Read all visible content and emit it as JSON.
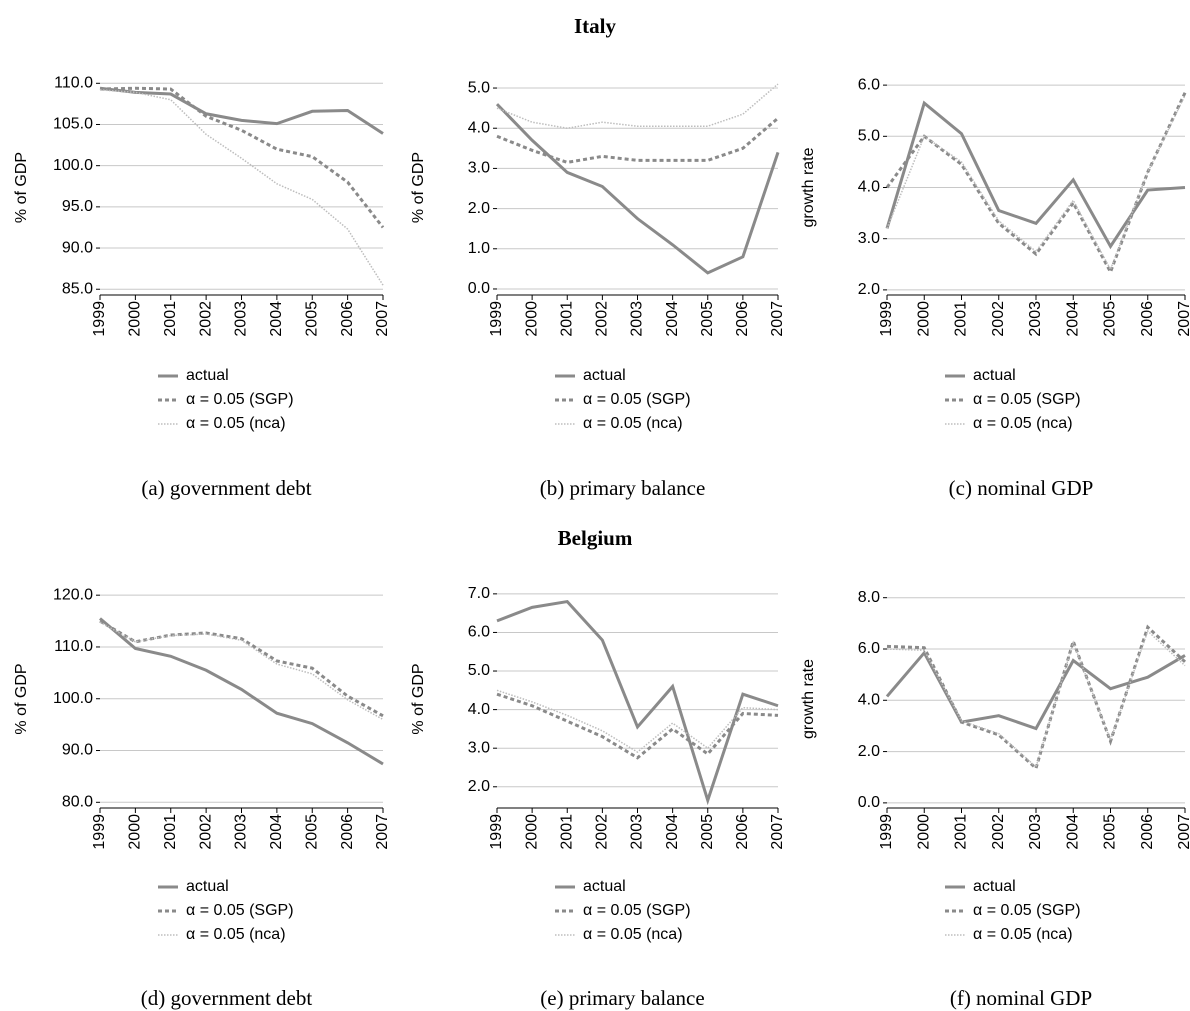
{
  "section_titles": [
    "Italy",
    "Belgium"
  ],
  "chart_data": [
    {
      "type": "line",
      "caption": "(a) government debt",
      "ylabel": "% of GDP",
      "grid": true,
      "legend_position": "below",
      "categories": [
        "1999",
        "2000",
        "2001",
        "2002",
        "2003",
        "2004",
        "2005",
        "2006",
        "2007"
      ],
      "ylim": [
        84.3,
        110.4
      ],
      "yticks": [
        {
          "value": 85,
          "label": "85.0"
        },
        {
          "value": 90,
          "label": "90.0"
        },
        {
          "value": 95,
          "label": "95.0"
        },
        {
          "value": 100,
          "label": "100.0"
        },
        {
          "value": 105,
          "label": "105.0"
        },
        {
          "value": 110,
          "label": "110.0"
        }
      ],
      "series": [
        {
          "name": "actual",
          "color": "#8a8a8a",
          "style": "solid",
          "values": [
            109.4,
            108.9,
            108.7,
            106.3,
            105.5,
            105.1,
            106.6,
            106.7,
            103.9
          ]
        },
        {
          "name": "α = 0.05 (SGP)",
          "color": "#8a8a8a",
          "style": "dashed",
          "values": [
            109.3,
            109.4,
            109.3,
            106.0,
            104.3,
            102.0,
            101.1,
            98.0,
            92.5
          ]
        },
        {
          "name": "α = 0.05 (nca)",
          "color": "#bdbdbd",
          "style": "dotted",
          "values": [
            109.2,
            108.9,
            108.0,
            103.8,
            100.9,
            97.8,
            95.9,
            92.3,
            85.5
          ]
        }
      ]
    },
    {
      "type": "line",
      "caption": "(b) primary balance",
      "ylabel": "% of GDP",
      "grid": true,
      "legend_position": "below",
      "categories": [
        "1999",
        "2000",
        "2001",
        "2002",
        "2003",
        "2004",
        "2005",
        "2006",
        "2007"
      ],
      "ylim": [
        -0.15,
        5.2
      ],
      "yticks": [
        {
          "value": 0,
          "label": "0.0"
        },
        {
          "value": 1,
          "label": "1.0"
        },
        {
          "value": 2,
          "label": "2.0"
        },
        {
          "value": 3,
          "label": "3.0"
        },
        {
          "value": 4,
          "label": "4.0"
        },
        {
          "value": 5,
          "label": "5.0"
        }
      ],
      "series": [
        {
          "name": "actual",
          "color": "#8a8a8a",
          "style": "solid",
          "values": [
            4.6,
            3.7,
            2.9,
            2.55,
            1.75,
            1.1,
            0.4,
            0.8,
            3.4
          ]
        },
        {
          "name": "α = 0.05 (SGP)",
          "color": "#8a8a8a",
          "style": "dashed",
          "values": [
            3.8,
            3.45,
            3.15,
            3.3,
            3.2,
            3.2,
            3.2,
            3.5,
            4.25
          ]
        },
        {
          "name": "α = 0.05 (nca)",
          "color": "#bdbdbd",
          "style": "dotted",
          "values": [
            4.5,
            4.15,
            4.0,
            4.15,
            4.05,
            4.05,
            4.05,
            4.35,
            5.1
          ]
        }
      ]
    },
    {
      "type": "line",
      "caption": "(c) nominal GDP",
      "ylabel": "growth rate",
      "grid": true,
      "legend_position": "below",
      "categories": [
        "1999",
        "2000",
        "2001",
        "2002",
        "2003",
        "2004",
        "2005",
        "2006",
        "2007"
      ],
      "ylim": [
        1.9,
        6.1
      ],
      "yticks": [
        {
          "value": 2,
          "label": "2.0"
        },
        {
          "value": 3,
          "label": "3.0"
        },
        {
          "value": 4,
          "label": "4.0"
        },
        {
          "value": 5,
          "label": "5.0"
        },
        {
          "value": 6,
          "label": "6.0"
        }
      ],
      "series": [
        {
          "name": "actual",
          "color": "#8a8a8a",
          "style": "solid",
          "values": [
            3.2,
            5.65,
            5.05,
            3.55,
            3.3,
            4.15,
            2.85,
            3.95,
            4.0
          ]
        },
        {
          "name": "α = 0.05 (SGP)",
          "color": "#8a8a8a",
          "style": "dashed",
          "values": [
            4.0,
            5.0,
            4.45,
            3.3,
            2.7,
            3.7,
            2.35,
            4.3,
            5.85
          ]
        },
        {
          "name": "α = 0.05 (nca)",
          "color": "#bdbdbd",
          "style": "dotted",
          "values": [
            3.2,
            5.0,
            4.5,
            3.35,
            2.75,
            3.75,
            2.4,
            4.3,
            5.8
          ]
        }
      ]
    },
    {
      "type": "line",
      "caption": "(d) government debt",
      "ylabel": "% of GDP",
      "grid": true,
      "legend_position": "below",
      "categories": [
        "1999",
        "2000",
        "2001",
        "2002",
        "2003",
        "2004",
        "2005",
        "2006",
        "2007"
      ],
      "ylim": [
        78.9,
        121
      ],
      "yticks": [
        {
          "value": 80,
          "label": "80.0"
        },
        {
          "value": 90,
          "label": "90.0"
        },
        {
          "value": 100,
          "label": "100.0"
        },
        {
          "value": 110,
          "label": "110.0"
        },
        {
          "value": 120,
          "label": "120.0"
        }
      ],
      "series": [
        {
          "name": "actual",
          "color": "#8a8a8a",
          "style": "solid",
          "values": [
            115.5,
            109.7,
            108.2,
            105.5,
            101.8,
            97.2,
            95.2,
            91.5,
            87.4
          ]
        },
        {
          "name": "α = 0.05 (SGP)",
          "color": "#8a8a8a",
          "style": "dashed",
          "values": [
            115.0,
            111.0,
            112.3,
            112.7,
            111.6,
            107.3,
            105.9,
            100.5,
            96.7
          ]
        },
        {
          "name": "α = 0.05 (nca)",
          "color": "#bdbdbd",
          "style": "dotted",
          "values": [
            114.8,
            111.0,
            112.2,
            112.5,
            111.3,
            106.7,
            104.8,
            99.8,
            96.0
          ]
        }
      ]
    },
    {
      "type": "line",
      "caption": "(e) primary balance",
      "ylabel": "% of GDP",
      "grid": true,
      "legend_position": "below",
      "categories": [
        "1999",
        "2000",
        "2001",
        "2002",
        "2003",
        "2004",
        "2005",
        "2006",
        "2007"
      ],
      "ylim": [
        1.45,
        7.1
      ],
      "yticks": [
        {
          "value": 2,
          "label": "2.0"
        },
        {
          "value": 3,
          "label": "3.0"
        },
        {
          "value": 4,
          "label": "4.0"
        },
        {
          "value": 5,
          "label": "5.0"
        },
        {
          "value": 6,
          "label": "6.0"
        },
        {
          "value": 7,
          "label": "7.0"
        }
      ],
      "series": [
        {
          "name": "actual",
          "color": "#8a8a8a",
          "style": "solid",
          "values": [
            6.3,
            6.65,
            6.8,
            5.8,
            3.55,
            4.6,
            1.65,
            4.4,
            4.1
          ]
        },
        {
          "name": "α = 0.05 (SGP)",
          "color": "#8a8a8a",
          "style": "dashed",
          "values": [
            4.4,
            4.1,
            3.7,
            3.3,
            2.75,
            3.5,
            2.85,
            3.9,
            3.85
          ]
        },
        {
          "name": "α = 0.05 (nca)",
          "color": "#bdbdbd",
          "style": "dotted",
          "values": [
            4.5,
            4.2,
            3.85,
            3.45,
            2.9,
            3.65,
            3.0,
            4.05,
            4.0
          ]
        }
      ]
    },
    {
      "type": "line",
      "caption": "(f) nominal GDP",
      "ylabel": "growth rate",
      "grid": true,
      "legend_position": "below",
      "categories": [
        "1999",
        "2000",
        "2001",
        "2002",
        "2003",
        "2004",
        "2005",
        "2006",
        "2007"
      ],
      "ylim": [
        -0.2,
        8.3
      ],
      "yticks": [
        {
          "value": 0,
          "label": "0.0"
        },
        {
          "value": 2,
          "label": "2.0"
        },
        {
          "value": 4,
          "label": "4.0"
        },
        {
          "value": 6,
          "label": "6.0"
        },
        {
          "value": 8,
          "label": "8.0"
        }
      ],
      "series": [
        {
          "name": "actual",
          "color": "#8a8a8a",
          "style": "solid",
          "values": [
            4.15,
            5.85,
            3.15,
            3.4,
            2.9,
            5.55,
            4.45,
            4.9,
            5.75
          ]
        },
        {
          "name": "α = 0.05 (SGP)",
          "color": "#8a8a8a",
          "style": "dashed",
          "values": [
            6.1,
            6.05,
            3.15,
            2.65,
            1.35,
            6.3,
            2.4,
            6.85,
            5.5
          ]
        },
        {
          "name": "α = 0.05 (nca)",
          "color": "#bdbdbd",
          "style": "dotted",
          "values": [
            6.0,
            5.95,
            3.2,
            2.7,
            1.4,
            6.25,
            2.45,
            6.7,
            5.35
          ]
        }
      ]
    }
  ]
}
